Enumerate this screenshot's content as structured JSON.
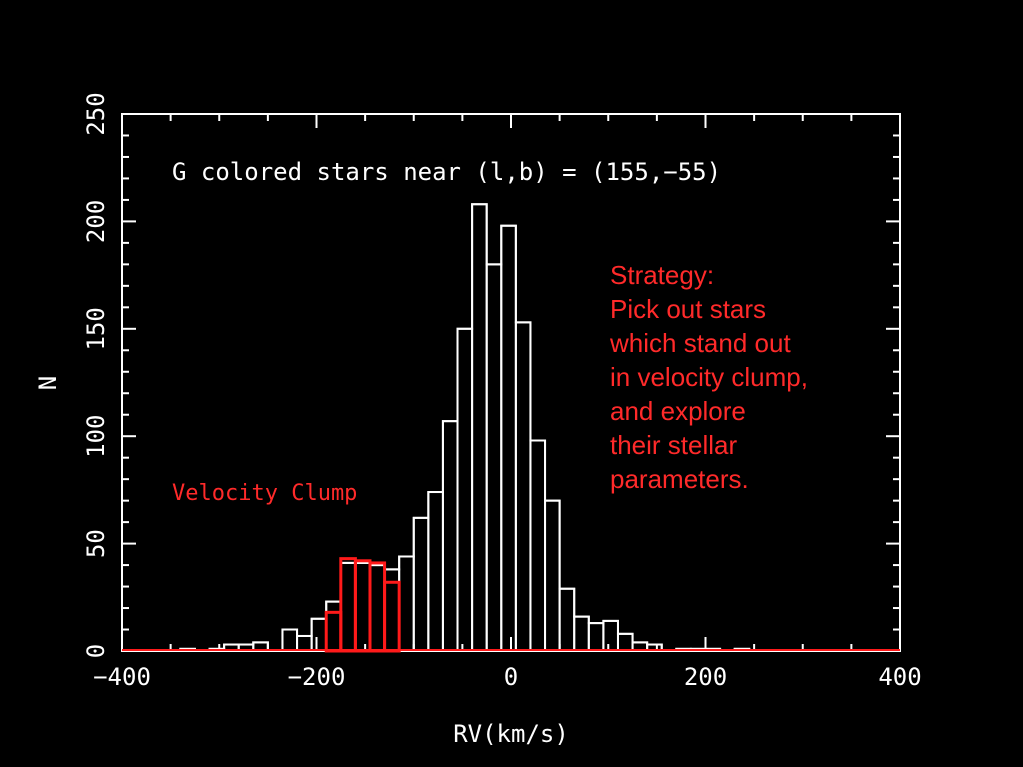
{
  "chart_data": {
    "type": "bar",
    "title": "G colored stars near (l,b) = (155,−55)",
    "xlabel": "RV(km/s)",
    "ylabel": "N",
    "xlim": [
      -400,
      400
    ],
    "ylim": [
      0,
      250
    ],
    "xticks": [
      -400,
      -200,
      0,
      200,
      400
    ],
    "xtick_labels": [
      "−400",
      "−200",
      "0",
      "200",
      "400"
    ],
    "yticks": [
      0,
      50,
      100,
      150,
      200,
      250
    ],
    "ytick_labels": [
      "0",
      "50",
      "100",
      "150",
      "200",
      "250"
    ],
    "bin_width": 15,
    "bin_edges_start": -340,
    "series": [
      {
        "color": "#ffffff",
        "values": [
          1,
          0,
          1,
          3,
          3,
          4,
          0,
          10,
          7,
          15,
          23,
          41,
          41,
          40,
          38,
          44,
          62,
          74,
          107,
          150,
          208,
          180,
          198,
          153,
          98,
          70,
          29,
          16,
          13,
          14,
          8,
          4,
          3,
          0,
          1,
          1,
          1,
          0,
          1,
          0,
          0,
          0,
          0,
          0,
          0,
          0,
          0
        ]
      },
      {
        "name": "Velocity Clump",
        "color": "#ff1a1a",
        "bin_start": -190,
        "values": [
          18,
          43,
          42,
          41,
          32
        ]
      }
    ],
    "annotations": [
      {
        "text": "Velocity Clump",
        "color": "#ff2a2a"
      }
    ],
    "grid": false
  },
  "strategy": {
    "color": "#ff2a2a",
    "lines": [
      "Strategy:",
      "Pick out stars",
      "which stand out",
      "in velocity clump,",
      "and explore",
      "their stellar",
      "parameters."
    ]
  }
}
